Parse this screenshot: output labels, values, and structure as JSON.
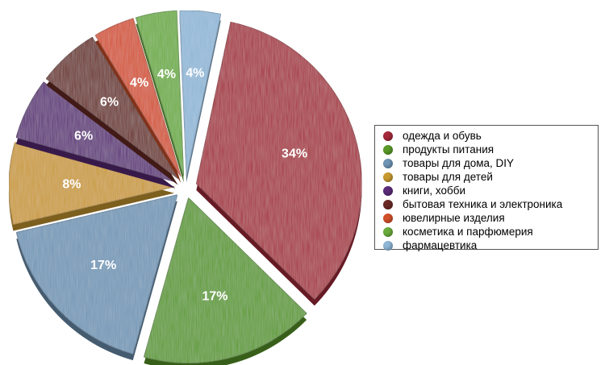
{
  "chart_data": {
    "type": "pie",
    "categories": [
      "одежда и обувь",
      "продукты питания",
      "товары для дома, DIY",
      "товары для детей",
      "книги, хобби",
      "бытовая техника и электроника",
      "ювелирные изделия",
      "косметика и парфюмерия",
      "фармацевтика"
    ],
    "values": [
      34,
      17,
      17,
      8,
      6,
      6,
      4,
      4,
      4
    ],
    "labels": [
      "34%",
      "17%",
      "17%",
      "8%",
      "6%",
      "6%",
      "4%",
      "4%",
      "4%"
    ],
    "colors": [
      "#a52a3a",
      "#5a9a28",
      "#6f95b5",
      "#c99a30",
      "#5b2a78",
      "#6a2a24",
      "#d2502a",
      "#6aac3c",
      "#8fb6d6"
    ],
    "title": "",
    "legend_position": "right",
    "exploded": true
  }
}
